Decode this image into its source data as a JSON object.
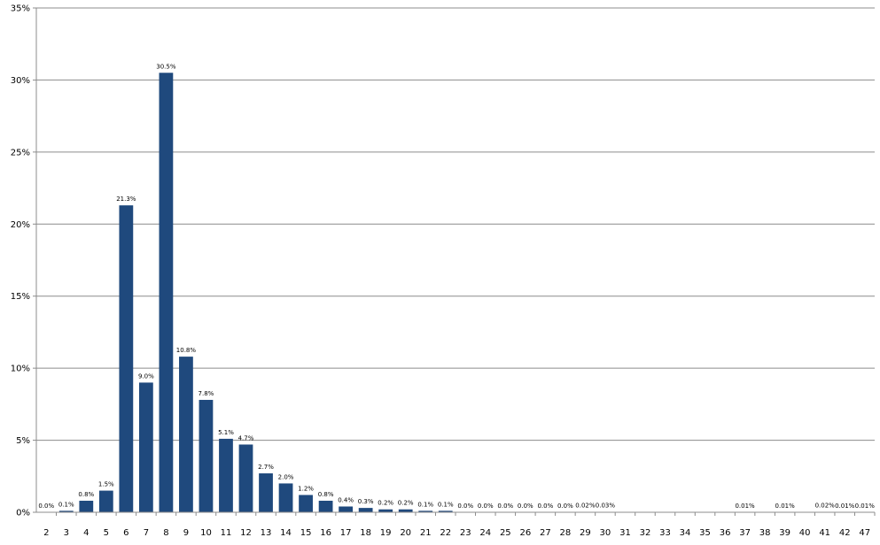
{
  "chart_data": {
    "type": "bar",
    "categories": [
      "2",
      "3",
      "4",
      "5",
      "6",
      "7",
      "8",
      "9",
      "10",
      "11",
      "12",
      "13",
      "14",
      "15",
      "16",
      "17",
      "18",
      "19",
      "20",
      "21",
      "22",
      "23",
      "24",
      "25",
      "26",
      "27",
      "28",
      "29",
      "30",
      "31",
      "32",
      "33",
      "34",
      "35",
      "36",
      "37",
      "38",
      "39",
      "40",
      "41",
      "42",
      "47"
    ],
    "values": [
      0.0,
      0.1,
      0.8,
      1.5,
      21.3,
      9.0,
      30.5,
      10.8,
      7.8,
      5.1,
      4.7,
      2.7,
      2.0,
      1.2,
      0.8,
      0.4,
      0.3,
      0.2,
      0.2,
      0.1,
      0.1,
      0.0,
      0.0,
      0.0,
      0.0,
      0.0,
      0.0,
      0.02,
      0.03,
      null,
      null,
      null,
      null,
      null,
      null,
      0.01,
      null,
      0.01,
      null,
      0.02,
      0.01,
      0.01
    ],
    "data_labels": [
      "0.0%",
      "0.1%",
      "0.8%",
      "1.5%",
      "21.3%",
      "9.0%",
      "30.5%",
      "10.8%",
      "7.8%",
      "5.1%",
      "4.7%",
      "2.7%",
      "2.0%",
      "1.2%",
      "0.8%",
      "0.4%",
      "0.3%",
      "0.2%",
      "0.2%",
      "0.1%",
      "0.1%",
      "0.0%",
      "0.0%",
      "0.0%",
      "0.0%",
      "0.0%",
      "0.0%",
      "0.02%",
      "0.03%",
      "",
      "",
      "",
      "",
      "",
      "",
      "0.01%",
      "",
      "0.01%",
      "",
      "0.02%",
      "0.01%",
      "0.01%"
    ],
    "y_ticks": [
      "0%",
      "5%",
      "10%",
      "15%",
      "20%",
      "25%",
      "30%",
      "35%"
    ],
    "ylim": [
      0,
      35
    ],
    "grid": true,
    "colors": {
      "bar": "#1F497D",
      "grid": "#8C8C8C",
      "axis": "#8C8C8C"
    }
  }
}
